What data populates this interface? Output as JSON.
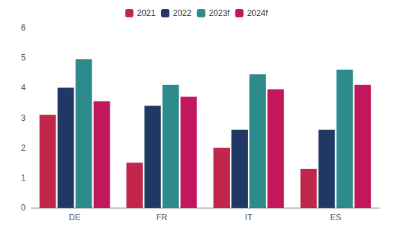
{
  "chart_data": {
    "type": "bar",
    "categories": [
      "DE",
      "FR",
      "IT",
      "ES"
    ],
    "series": [
      {
        "name": "2021",
        "color": "#c0274a",
        "values": [
          3.1,
          1.5,
          2.0,
          1.3
        ]
      },
      {
        "name": "2022",
        "color": "#1f3864",
        "values": [
          4.0,
          3.4,
          2.6,
          2.6
        ]
      },
      {
        "name": "2023f",
        "color": "#2e8b8b",
        "values": [
          4.95,
          4.1,
          4.45,
          4.6
        ]
      },
      {
        "name": "2024f",
        "color": "#c2185b",
        "values": [
          3.55,
          3.7,
          3.95,
          4.1
        ]
      }
    ],
    "ylim": [
      0,
      6
    ],
    "yticks": [
      0,
      1,
      2,
      3,
      4,
      5,
      6
    ],
    "grid": false,
    "legend": "top"
  }
}
